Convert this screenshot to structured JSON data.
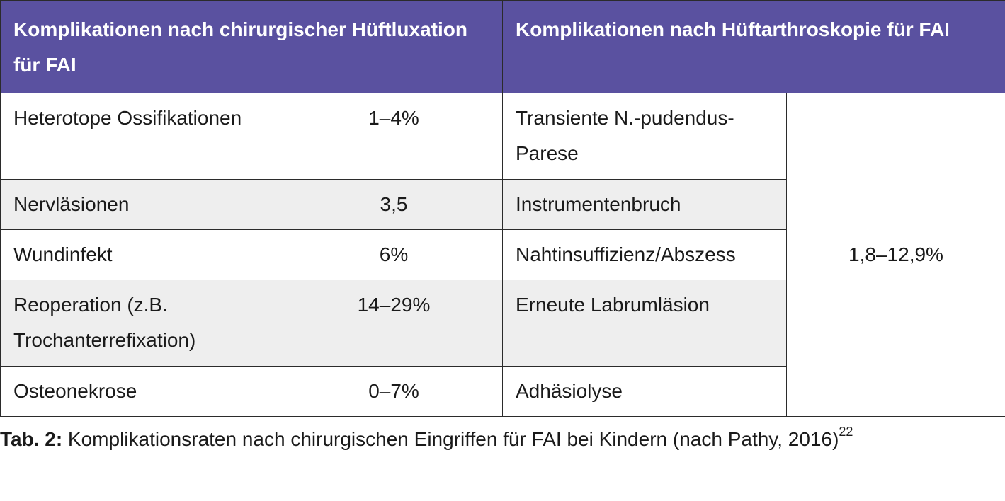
{
  "table": {
    "header": {
      "left": "Komplikationen nach chirurgischer Hüftluxation für FAI",
      "right": "Komplikationen nach Hüftarthroskopie für FAI"
    },
    "rows": [
      {
        "left_label": "Heterotope Ossifikationen",
        "left_value": "1–4%",
        "right_label": "Transiente N.-pudendus-Parese"
      },
      {
        "left_label": "Nervläsionen",
        "left_value": "3,5",
        "right_label": "Instrumentenbruch"
      },
      {
        "left_label": "Wundinfekt",
        "left_value": "6%",
        "right_label": "Nahtinsuffizienz/Abszess"
      },
      {
        "left_label": "Reoperation (z.B. Trochanterrefixation)",
        "left_value": "14–29%",
        "right_label": "Erneute Labrumläsion"
      },
      {
        "left_label": "Osteonekrose",
        "left_value": "0–7%",
        "right_label": "Adhäsiolyse"
      }
    ],
    "right_value_merged": "1,8–12,9%"
  },
  "caption": {
    "label": "Tab. 2:",
    "text": " Komplikationsraten nach chirurgischen Eingriffen für FAI bei Kindern  (nach Pathy, 2016)",
    "reference": "22"
  },
  "colors": {
    "header_bg": "#5a51a0",
    "header_text": "#ffffff",
    "row_alt_bg": "#eeeeee",
    "border": "#2b2b2b"
  }
}
